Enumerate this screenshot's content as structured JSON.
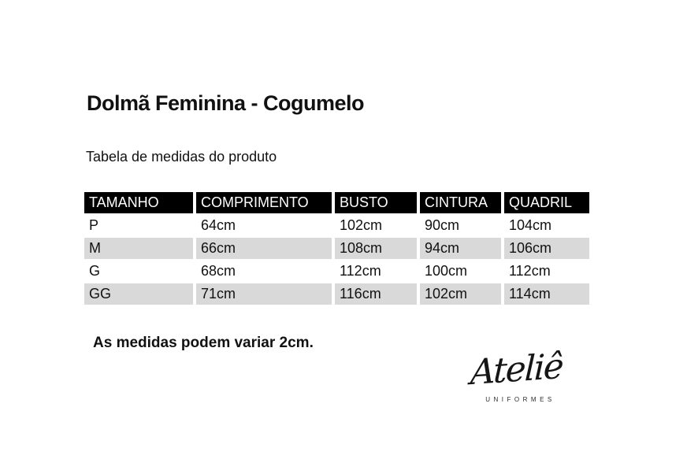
{
  "page": {
    "title": "Dolmã Feminina - Cogumelo",
    "subtitle": "Tabela de medidas do produto",
    "note": "As medidas podem variar 2cm."
  },
  "table": {
    "headers": [
      "TAMANHO",
      "COMPRIMENTO",
      "BUSTO",
      "CINTURA",
      "QUADRIL"
    ],
    "rows": [
      [
        "P",
        "64cm",
        "102cm",
        "90cm",
        "104cm"
      ],
      [
        "M",
        "66cm",
        "108cm",
        "94cm",
        "106cm"
      ],
      [
        "G",
        "68cm",
        "112cm",
        "100cm",
        "112cm"
      ],
      [
        "GG",
        "71cm",
        "116cm",
        "102cm",
        "114cm"
      ]
    ]
  },
  "logo": {
    "brand": "Ateliê",
    "tagline": "UNIFORMES"
  },
  "colors": {
    "header_bg": "#000000",
    "header_text": "#ffffff",
    "row_alt_bg": "#d9d9d9",
    "text": "#111111"
  }
}
